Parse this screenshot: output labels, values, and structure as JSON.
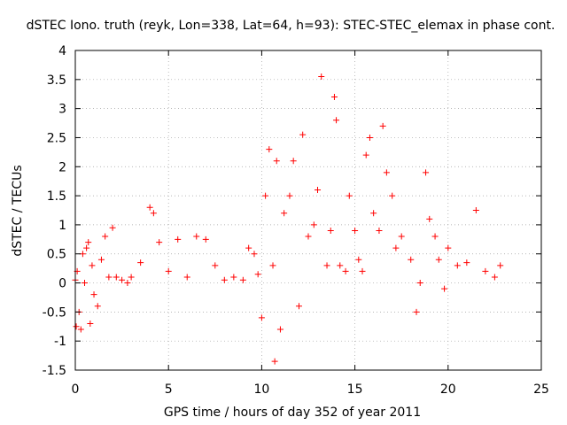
{
  "chart_data": {
    "type": "scatter",
    "title": "dSTEC Iono. truth (reyk, Lon=338, Lat=64, h=93): STEC-STEC_elemax in phase cont.",
    "xlabel": "GPS time / hours of day 352 of year 2011",
    "ylabel": "dSTEC  / TECUs",
    "xlim": [
      0,
      25
    ],
    "ylim": [
      -1.5,
      4
    ],
    "xticks": [
      "0",
      "5",
      "10",
      "15",
      "20",
      "25"
    ],
    "yticks": [
      "-1.5",
      "-1",
      "-0.5",
      "0",
      "0.5",
      "1",
      "1.5",
      "2",
      "2.5",
      "3",
      "3.5",
      "4"
    ],
    "grid": true,
    "marker": "+",
    "series_color": "#ff0000",
    "series": [
      {
        "x_start": 0.0,
        "x_end": 22.8,
        "description_points": [
          [
            0.0,
            0.05
          ],
          [
            0.05,
            -0.75
          ],
          [
            0.1,
            0.2
          ],
          [
            0.2,
            -0.5
          ],
          [
            0.3,
            -0.8
          ],
          [
            0.4,
            0.5
          ],
          [
            0.5,
            0.0
          ],
          [
            0.6,
            0.6
          ],
          [
            0.7,
            0.7
          ],
          [
            0.8,
            -0.7
          ],
          [
            0.9,
            0.3
          ],
          [
            1.0,
            -0.2
          ],
          [
            1.2,
            -0.4
          ],
          [
            1.4,
            0.4
          ],
          [
            1.6,
            0.8
          ],
          [
            1.8,
            0.1
          ],
          [
            2.0,
            0.95
          ],
          [
            2.2,
            0.1
          ],
          [
            2.5,
            0.05
          ],
          [
            2.8,
            0.0
          ],
          [
            3.0,
            0.1
          ],
          [
            3.5,
            0.35
          ],
          [
            4.0,
            1.3
          ],
          [
            4.2,
            1.2
          ],
          [
            4.5,
            0.7
          ],
          [
            5.0,
            0.2
          ],
          [
            5.5,
            0.75
          ],
          [
            6.0,
            0.1
          ],
          [
            6.5,
            0.8
          ],
          [
            7.0,
            0.75
          ],
          [
            7.5,
            0.3
          ],
          [
            8.0,
            0.05
          ],
          [
            8.5,
            0.1
          ],
          [
            9.0,
            0.05
          ],
          [
            9.3,
            0.6
          ],
          [
            9.6,
            0.5
          ],
          [
            9.8,
            0.15
          ],
          [
            10.0,
            -0.6
          ],
          [
            10.2,
            1.5
          ],
          [
            10.4,
            2.3
          ],
          [
            10.6,
            0.3
          ],
          [
            10.7,
            -1.35
          ],
          [
            10.8,
            2.1
          ],
          [
            11.0,
            -0.8
          ],
          [
            11.2,
            1.2
          ],
          [
            11.5,
            1.5
          ],
          [
            11.7,
            2.1
          ],
          [
            12.0,
            -0.4
          ],
          [
            12.2,
            2.55
          ],
          [
            12.5,
            0.8
          ],
          [
            12.8,
            1.0
          ],
          [
            13.0,
            1.6
          ],
          [
            13.2,
            3.55
          ],
          [
            13.5,
            0.3
          ],
          [
            13.7,
            0.9
          ],
          [
            13.9,
            3.2
          ],
          [
            14.0,
            2.8
          ],
          [
            14.2,
            0.3
          ],
          [
            14.5,
            0.2
          ],
          [
            14.7,
            1.5
          ],
          [
            15.0,
            0.9
          ],
          [
            15.2,
            0.4
          ],
          [
            15.4,
            0.2
          ],
          [
            15.6,
            2.2
          ],
          [
            15.8,
            2.5
          ],
          [
            16.0,
            1.2
          ],
          [
            16.3,
            0.9
          ],
          [
            16.5,
            2.7
          ],
          [
            16.7,
            1.9
          ],
          [
            17.0,
            1.5
          ],
          [
            17.2,
            0.6
          ],
          [
            17.5,
            0.8
          ],
          [
            18.0,
            0.4
          ],
          [
            18.3,
            -0.5
          ],
          [
            18.5,
            0.0
          ],
          [
            18.8,
            1.9
          ],
          [
            19.0,
            1.1
          ],
          [
            19.3,
            0.8
          ],
          [
            19.5,
            0.4
          ],
          [
            19.8,
            -0.1
          ],
          [
            20.0,
            0.6
          ],
          [
            20.5,
            0.3
          ],
          [
            21.0,
            0.35
          ],
          [
            21.5,
            1.25
          ],
          [
            22.0,
            0.2
          ],
          [
            22.5,
            0.1
          ],
          [
            22.8,
            0.3
          ]
        ]
      }
    ]
  }
}
